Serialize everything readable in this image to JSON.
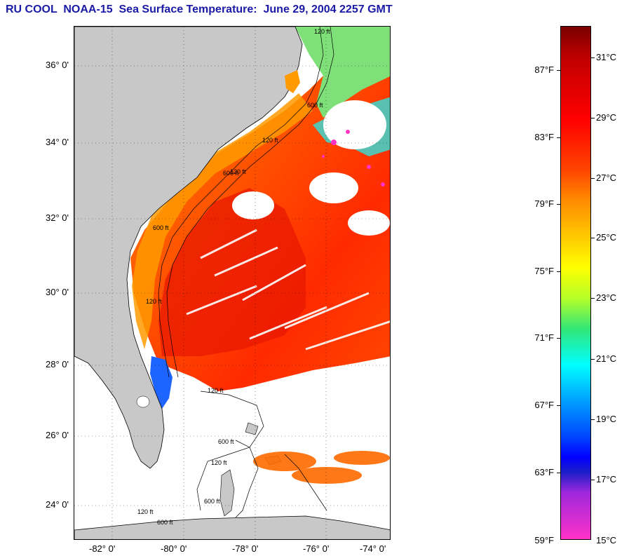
{
  "title": "RU COOL  NOAA-15  Sea Surface Temperature:  June 29, 2004 2257 GMT",
  "axes": {
    "lat_labels": [
      "36° 0'",
      "34° 0'",
      "32° 0'",
      "30° 0'",
      "28° 0'",
      "26° 0'",
      "24° 0'"
    ],
    "lon_labels": [
      "-82° 0'",
      "-80° 0'",
      "-78° 0'",
      "-76° 0'",
      "-74° 0'"
    ]
  },
  "isobath_labels": [
    "120 ft",
    "600 ft",
    "120 ft",
    "600 ft",
    "120 ft",
    "600 ft",
    "120 ft",
    "120 ft",
    "600 ft",
    "120 ft",
    "600 ft",
    "120 ft",
    "600 ft"
  ],
  "colorbar": {
    "fahrenheit_labels": [
      "87°F",
      "83°F",
      "79°F",
      "75°F",
      "71°F",
      "67°F",
      "63°F",
      "59°F"
    ],
    "celsius_labels": [
      "31°C",
      "29°C",
      "27°C",
      "25°C",
      "23°C",
      "21°C",
      "19°C",
      "17°C",
      "15°C"
    ]
  },
  "colors": {
    "title": "#1a1aa6",
    "land": "#c8c8c8",
    "cloud": "#ffffff",
    "warm": "#ff3300",
    "gulf_stream": "#e00000"
  }
}
